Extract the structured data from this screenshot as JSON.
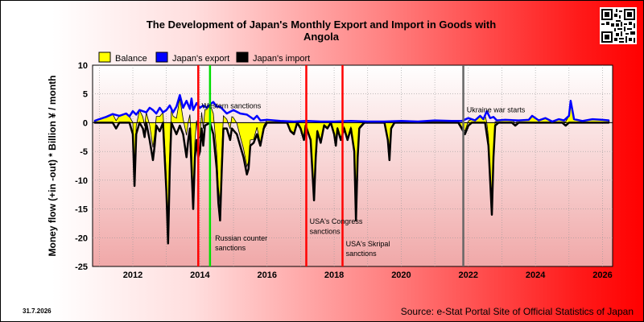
{
  "chart_data": {
    "type": "line",
    "title": "The Development of Japan's Monthly Export and Import in Goods with Angola",
    "title_lines": [
      "The Development of Japan's Monthly Export and Import in Goods with",
      "Angola"
    ],
    "ylabel": "Money flow (+in -out) * Billion ¥ / month",
    "ylim": [
      -25,
      10
    ],
    "yticks": [
      10,
      5,
      0,
      -5,
      -10,
      -15,
      -20,
      -25
    ],
    "xlim": [
      2010.8,
      2026.3
    ],
    "xticks": [
      2012,
      2014,
      2016,
      2018,
      2020,
      2022,
      2024,
      2026
    ],
    "xtick_labels": [
      "2012",
      "2014",
      "2016",
      "2018",
      "2020",
      "2022",
      "2024",
      "2026"
    ],
    "grid": true,
    "legend": {
      "placement": "top-left",
      "items": [
        {
          "label": "Balance",
          "color": "#ffff00"
        },
        {
          "label": "Japan's export",
          "color": "#0000ff"
        },
        {
          "label": "Japan's import",
          "color": "#000000"
        }
      ]
    },
    "series": [
      {
        "name": "Japan's export",
        "color": "#0000ff",
        "points": [
          [
            2010.85,
            0.3
          ],
          [
            2011.0,
            0.6
          ],
          [
            2011.2,
            1.0
          ],
          [
            2011.4,
            1.5
          ],
          [
            2011.6,
            1.2
          ],
          [
            2011.8,
            1.6
          ],
          [
            2011.9,
            1.1
          ],
          [
            2012.0,
            2.0
          ],
          [
            2012.1,
            1.4
          ],
          [
            2012.2,
            2.2
          ],
          [
            2012.4,
            1.8
          ],
          [
            2012.5,
            2.6
          ],
          [
            2012.6,
            2.2
          ],
          [
            2012.7,
            1.6
          ],
          [
            2012.8,
            2.6
          ],
          [
            2012.9,
            1.8
          ],
          [
            2013.0,
            2.2
          ],
          [
            2013.1,
            3.0
          ],
          [
            2013.2,
            1.8
          ],
          [
            2013.3,
            2.8
          ],
          [
            2013.4,
            4.8
          ],
          [
            2013.5,
            2.6
          ],
          [
            2013.6,
            3.8
          ],
          [
            2013.7,
            2.4
          ],
          [
            2013.75,
            4.2
          ],
          [
            2013.8,
            2.2
          ],
          [
            2013.9,
            3.4
          ],
          [
            2014.0,
            2.6
          ],
          [
            2014.1,
            3.0
          ],
          [
            2014.2,
            2.6
          ],
          [
            2014.3,
            3.2
          ],
          [
            2014.4,
            3.6
          ],
          [
            2014.5,
            2.8
          ],
          [
            2014.6,
            2.8
          ],
          [
            2014.8,
            1.6
          ],
          [
            2015.0,
            2.2
          ],
          [
            2015.2,
            1.6
          ],
          [
            2015.4,
            1.4
          ],
          [
            2015.6,
            0.6
          ],
          [
            2015.7,
            1.2
          ],
          [
            2015.8,
            0.4
          ],
          [
            2016.0,
            0.5
          ],
          [
            2016.4,
            0.3
          ],
          [
            2016.8,
            0.2
          ],
          [
            2017.2,
            0.3
          ],
          [
            2017.6,
            0.2
          ],
          [
            2018.0,
            0.2
          ],
          [
            2018.5,
            0.3
          ],
          [
            2019.0,
            0.2
          ],
          [
            2019.5,
            0.2
          ],
          [
            2020.0,
            0.3
          ],
          [
            2020.5,
            0.2
          ],
          [
            2021.0,
            0.4
          ],
          [
            2021.5,
            0.3
          ],
          [
            2021.8,
            0.3
          ],
          [
            2022.0,
            0.8
          ],
          [
            2022.2,
            0.4
          ],
          [
            2022.35,
            1.2
          ],
          [
            2022.45,
            0.6
          ],
          [
            2022.55,
            2.0
          ],
          [
            2022.65,
            0.8
          ],
          [
            2022.75,
            1.0
          ],
          [
            2022.85,
            0.4
          ],
          [
            2023.1,
            0.5
          ],
          [
            2023.5,
            0.4
          ],
          [
            2023.8,
            0.5
          ],
          [
            2023.9,
            1.2
          ],
          [
            2024.1,
            0.4
          ],
          [
            2024.3,
            0.8
          ],
          [
            2024.5,
            0.2
          ],
          [
            2024.7,
            0.6
          ],
          [
            2024.85,
            0.4
          ],
          [
            2025.0,
            1.2
          ],
          [
            2025.05,
            3.8
          ],
          [
            2025.15,
            0.6
          ],
          [
            2025.4,
            0.3
          ],
          [
            2025.7,
            0.6
          ],
          [
            2026.0,
            0.5
          ],
          [
            2026.2,
            0.4
          ]
        ]
      },
      {
        "name": "Japan's import",
        "color": "#000000",
        "points": [
          [
            2010.85,
            0.0
          ],
          [
            2011.4,
            0.0
          ],
          [
            2011.5,
            -1.0
          ],
          [
            2011.6,
            0.0
          ],
          [
            2011.9,
            0.0
          ],
          [
            2012.0,
            -2.0
          ],
          [
            2012.05,
            -11.0
          ],
          [
            2012.1,
            -2.0
          ],
          [
            2012.2,
            0.0
          ],
          [
            2012.3,
            -1.0
          ],
          [
            2012.35,
            -2.5
          ],
          [
            2012.4,
            0.0
          ],
          [
            2012.5,
            -3.0
          ],
          [
            2012.6,
            -6.5
          ],
          [
            2012.65,
            -4.0
          ],
          [
            2012.7,
            -0.5
          ],
          [
            2012.8,
            -1.5
          ],
          [
            2012.9,
            0.0
          ],
          [
            2013.0,
            -12.0
          ],
          [
            2013.05,
            -21.0
          ],
          [
            2013.1,
            -8.0
          ],
          [
            2013.15,
            0.0
          ],
          [
            2013.3,
            -2.0
          ],
          [
            2013.4,
            -0.5
          ],
          [
            2013.5,
            -2.0
          ],
          [
            2013.6,
            -6.0
          ],
          [
            2013.65,
            -3.0
          ],
          [
            2013.7,
            -1.0
          ],
          [
            2013.8,
            -15.0
          ],
          [
            2013.85,
            -6.0
          ],
          [
            2013.9,
            -3.0
          ],
          [
            2013.95,
            -6.0
          ],
          [
            2014.0,
            -5.0
          ],
          [
            2014.05,
            -1.0
          ],
          [
            2014.1,
            -4.0
          ],
          [
            2014.15,
            -0.5
          ],
          [
            2014.3,
            0.0
          ],
          [
            2014.4,
            -2.0
          ],
          [
            2014.5,
            -8.0
          ],
          [
            2014.55,
            -14.0
          ],
          [
            2014.6,
            -17.0
          ],
          [
            2014.65,
            -8.0
          ],
          [
            2014.7,
            -1.0
          ],
          [
            2014.8,
            -1.0
          ],
          [
            2014.9,
            -3.0
          ],
          [
            2014.95,
            -1.0
          ],
          [
            2015.1,
            -2.0
          ],
          [
            2015.3,
            -6.0
          ],
          [
            2015.4,
            -9.0
          ],
          [
            2015.45,
            -8.0
          ],
          [
            2015.5,
            -4.0
          ],
          [
            2015.6,
            -3.5
          ],
          [
            2015.7,
            -2.0
          ],
          [
            2015.8,
            -4.0
          ],
          [
            2015.9,
            -1.0
          ],
          [
            2016.0,
            0.0
          ],
          [
            2016.6,
            0.0
          ],
          [
            2016.7,
            -1.5
          ],
          [
            2016.8,
            -2.0
          ],
          [
            2016.9,
            0.0
          ],
          [
            2017.0,
            -1.0
          ],
          [
            2017.1,
            -3.0
          ],
          [
            2017.15,
            -0.5
          ],
          [
            2017.3,
            -3.0
          ],
          [
            2017.4,
            -13.5
          ],
          [
            2017.45,
            -6.0
          ],
          [
            2017.5,
            -1.5
          ],
          [
            2017.6,
            -3.5
          ],
          [
            2017.7,
            -0.5
          ],
          [
            2017.8,
            -1.0
          ],
          [
            2017.9,
            0.0
          ],
          [
            2018.0,
            -2.0
          ],
          [
            2018.05,
            -4.0
          ],
          [
            2018.1,
            -1.0
          ],
          [
            2018.2,
            -3.0
          ],
          [
            2018.3,
            -1.0
          ],
          [
            2018.4,
            -3.0
          ],
          [
            2018.5,
            -1.0
          ],
          [
            2018.6,
            -5.0
          ],
          [
            2018.65,
            -17.0
          ],
          [
            2018.7,
            -6.0
          ],
          [
            2018.75,
            -1.0
          ],
          [
            2018.9,
            0.0
          ],
          [
            2019.5,
            0.0
          ],
          [
            2019.6,
            -3.0
          ],
          [
            2019.65,
            -6.5
          ],
          [
            2019.7,
            -1.0
          ],
          [
            2019.8,
            0.0
          ],
          [
            2021.7,
            0.0
          ],
          [
            2021.8,
            -1.0
          ],
          [
            2021.9,
            -2.0
          ],
          [
            2022.0,
            -0.5
          ],
          [
            2022.1,
            0.0
          ],
          [
            2022.5,
            0.0
          ],
          [
            2022.6,
            -4.0
          ],
          [
            2022.65,
            -10.0
          ],
          [
            2022.7,
            -16.0
          ],
          [
            2022.75,
            -6.0
          ],
          [
            2022.8,
            -0.5
          ],
          [
            2022.9,
            0.0
          ],
          [
            2023.3,
            0.0
          ],
          [
            2023.4,
            -0.5
          ],
          [
            2023.5,
            0.0
          ],
          [
            2024.8,
            0.0
          ],
          [
            2024.9,
            -0.5
          ],
          [
            2025.0,
            0.0
          ],
          [
            2026.2,
            0.0
          ]
        ]
      }
    ],
    "vertical_markers": [
      {
        "x": 2013.95,
        "color": "#ff0000",
        "label": ""
      },
      {
        "x": 2014.3,
        "color": "#00dd00",
        "label": ""
      },
      {
        "x": 2017.17,
        "color": "#ff0000",
        "label": ""
      },
      {
        "x": 2018.25,
        "color": "#ff0000",
        "label": ""
      },
      {
        "x": 2021.85,
        "color": "#666666",
        "label": ""
      }
    ],
    "annotations": [
      {
        "text": "Western sanctions",
        "x": 2014.05,
        "y": 2.5
      },
      {
        "text": "Russian counter",
        "x": 2014.45,
        "y": -20.5
      },
      {
        "text": "sanctions",
        "x": 2014.45,
        "y": -22.2
      },
      {
        "text": "USA's Congress",
        "x": 2017.27,
        "y": -17.6
      },
      {
        "text": "sanctions",
        "x": 2017.27,
        "y": -19.3
      },
      {
        "text": "USA's Skripal",
        "x": 2018.35,
        "y": -21.5
      },
      {
        "text": "sanctions",
        "x": 2018.35,
        "y": -23.2
      },
      {
        "text": "Ukraine war starts",
        "x": 2021.95,
        "y": 1.8
      }
    ],
    "footer_date": "31.7.2026",
    "source": "Source: e-Stat Portal Site of Official Statistics of Japan"
  },
  "colors": {
    "balance_fill": "#ffff00",
    "export_line": "#0000ff",
    "import_line": "#000000",
    "plot_top": "#ffffff",
    "plot_bottom": "#f0a8a8"
  },
  "icons": {
    "corner": "qr-code-icon"
  }
}
